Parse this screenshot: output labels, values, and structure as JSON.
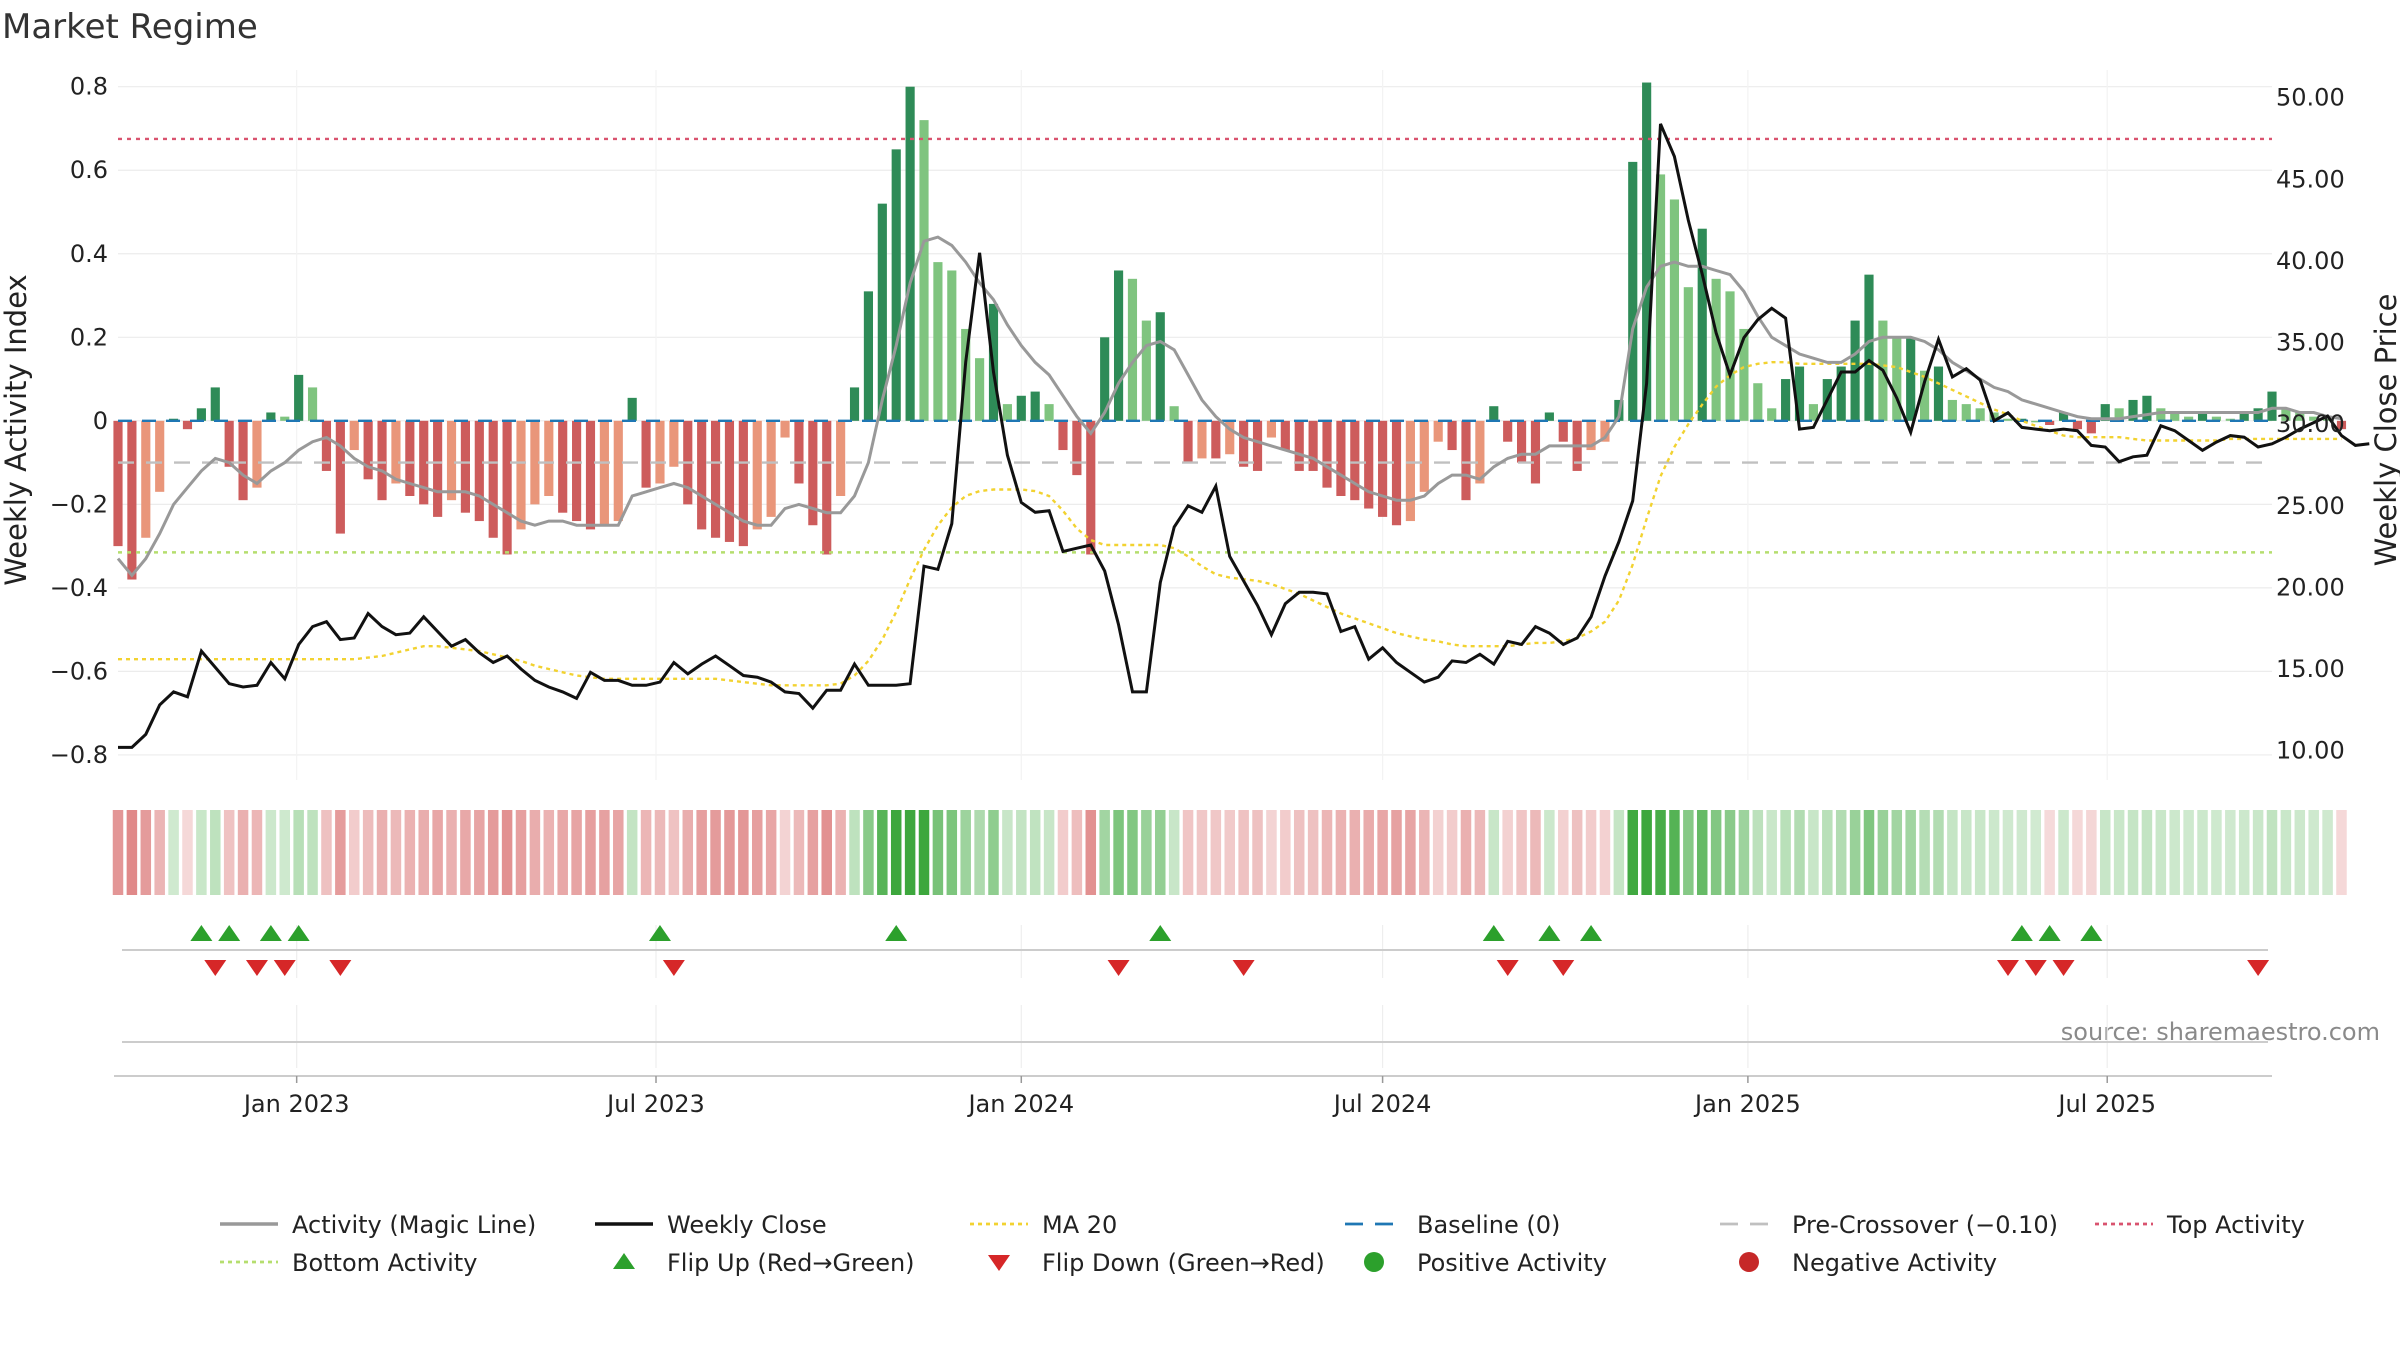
{
  "chart_data": {
    "type": "bar",
    "title": "Market Regime",
    "source_note": "source: sharemaestro.com",
    "y_left": {
      "label": "Weekly Activity Index",
      "ylim": [
        -0.86,
        0.84
      ],
      "ticks": [
        -0.8,
        -0.6,
        -0.4,
        -0.2,
        0,
        0.2,
        0.4,
        0.6,
        0.8
      ],
      "tick_labels": [
        "−0.8",
        "−0.6",
        "−0.4",
        "−0.2",
        "0",
        "0.2",
        "0.4",
        "0.6",
        "0.8"
      ]
    },
    "y_right": {
      "label": "Weekly Close Price",
      "ylim": [
        8.2,
        51.7
      ],
      "ticks": [
        10,
        15,
        20,
        25,
        30,
        35,
        40,
        45,
        50
      ],
      "tick_labels": [
        "10.00",
        "15.00",
        "20.00",
        "25.00",
        "30.00",
        "35.00",
        "40.00",
        "45.00",
        "50.00"
      ]
    },
    "x_axis": {
      "start_date": "2022-10-03",
      "end_date": "2025-09-22",
      "ticks": [
        {
          "date": "2023-01-01",
          "label": "Jan 2023"
        },
        {
          "date": "2023-07-01",
          "label": "Jul 2023"
        },
        {
          "date": "2024-01-01",
          "label": "Jan 2024"
        },
        {
          "date": "2024-07-01",
          "label": "Jul 2024"
        },
        {
          "date": "2025-01-01",
          "label": "Jan 2025"
        },
        {
          "date": "2025-07-01",
          "label": "Jul 2025"
        }
      ]
    },
    "reference_lines": {
      "baseline": 0,
      "pre_crossover": -0.1,
      "top_activity": 0.675,
      "bottom_activity": -0.315
    },
    "colors": {
      "dark_green": "#2e8b57",
      "light_green": "#7fc47f",
      "dark_red": "#cd5c5c",
      "light_red": "#e9967a",
      "magic_line": "#999999",
      "weekly_close": "#111111",
      "ma20": "#f2d230",
      "baseline": "#1f77b4",
      "pre_crossover": "#c0c0c0",
      "top_activity": "#d9536f",
      "bottom_activity": "#b5de6e",
      "flip_up": "#2ca02c",
      "flip_down": "#d62728",
      "positive": "#2ca02c",
      "negative": "#c62828"
    },
    "activity": [
      -0.3,
      -0.38,
      -0.28,
      -0.17,
      0.005,
      -0.02,
      0.03,
      0.08,
      -0.11,
      -0.19,
      -0.16,
      0.02,
      0.01,
      0.11,
      0.08,
      -0.12,
      -0.27,
      -0.07,
      -0.14,
      -0.19,
      -0.15,
      -0.18,
      -0.2,
      -0.23,
      -0.19,
      -0.22,
      -0.24,
      -0.28,
      -0.32,
      -0.26,
      -0.2,
      -0.18,
      -0.22,
      -0.24,
      -0.26,
      -0.25,
      -0.24,
      0.055,
      -0.16,
      -0.15,
      -0.11,
      -0.2,
      -0.26,
      -0.28,
      -0.29,
      -0.3,
      -0.26,
      -0.23,
      -0.04,
      -0.15,
      -0.25,
      -0.32,
      -0.18,
      0.08,
      0.31,
      0.52,
      0.65,
      0.8,
      0.72,
      0.38,
      0.36,
      0.22,
      0.15,
      0.28,
      0.04,
      0.06,
      0.07,
      0.04,
      -0.07,
      -0.13,
      -0.32,
      0.2,
      0.36,
      0.34,
      0.24,
      0.26,
      0.035,
      -0.1,
      -0.09,
      -0.09,
      -0.08,
      -0.11,
      -0.12,
      -0.04,
      -0.07,
      -0.12,
      -0.12,
      -0.16,
      -0.18,
      -0.19,
      -0.21,
      -0.23,
      -0.25,
      -0.24,
      -0.17,
      -0.05,
      -0.07,
      -0.19,
      -0.15,
      0.035,
      -0.05,
      -0.1,
      -0.15,
      0.02,
      -0.05,
      -0.12,
      -0.07,
      -0.05,
      0.05,
      0.62,
      0.81,
      0.59,
      0.53,
      0.32,
      0.46,
      0.34,
      0.31,
      0.22,
      0.09,
      0.03,
      0.1,
      0.13,
      0.04,
      0.1,
      0.13,
      0.24,
      0.35,
      0.24,
      0.2,
      0.2,
      0.12,
      0.13,
      0.05,
      0.04,
      0.03,
      0.02,
      0.005,
      0.005,
      0.0,
      -0.01,
      0.02,
      -0.02,
      -0.03,
      0.04,
      0.03,
      0.05,
      0.06,
      0.03,
      0.02,
      0.01,
      0.02,
      0.01,
      0.005,
      0.02,
      0.03,
      0.07,
      0.03,
      0.02,
      0.01,
      0.005,
      -0.02
    ],
    "magic_line": [
      -0.33,
      -0.37,
      -0.33,
      -0.27,
      -0.2,
      -0.16,
      -0.12,
      -0.09,
      -0.1,
      -0.13,
      -0.15,
      -0.12,
      -0.1,
      -0.07,
      -0.05,
      -0.04,
      -0.06,
      -0.09,
      -0.11,
      -0.12,
      -0.14,
      -0.15,
      -0.16,
      -0.17,
      -0.17,
      -0.17,
      -0.18,
      -0.2,
      -0.22,
      -0.24,
      -0.25,
      -0.24,
      -0.24,
      -0.25,
      -0.25,
      -0.25,
      -0.25,
      -0.18,
      -0.17,
      -0.16,
      -0.15,
      -0.16,
      -0.18,
      -0.2,
      -0.22,
      -0.24,
      -0.25,
      -0.25,
      -0.21,
      -0.2,
      -0.21,
      -0.22,
      -0.22,
      -0.18,
      -0.1,
      0.05,
      0.18,
      0.33,
      0.43,
      0.44,
      0.42,
      0.38,
      0.33,
      0.29,
      0.23,
      0.18,
      0.14,
      0.11,
      0.06,
      0.01,
      -0.03,
      0.02,
      0.09,
      0.14,
      0.18,
      0.19,
      0.17,
      0.11,
      0.05,
      0.01,
      -0.02,
      -0.04,
      -0.05,
      -0.06,
      -0.07,
      -0.08,
      -0.09,
      -0.11,
      -0.13,
      -0.15,
      -0.17,
      -0.18,
      -0.19,
      -0.19,
      -0.18,
      -0.15,
      -0.13,
      -0.13,
      -0.14,
      -0.11,
      -0.09,
      -0.08,
      -0.08,
      -0.06,
      -0.06,
      -0.06,
      -0.06,
      -0.04,
      0.01,
      0.22,
      0.32,
      0.37,
      0.38,
      0.37,
      0.37,
      0.36,
      0.35,
      0.31,
      0.25,
      0.2,
      0.18,
      0.16,
      0.15,
      0.14,
      0.14,
      0.16,
      0.19,
      0.2,
      0.2,
      0.2,
      0.19,
      0.17,
      0.14,
      0.12,
      0.1,
      0.08,
      0.07,
      0.05,
      0.04,
      0.03,
      0.02,
      0.01,
      0.005,
      0.005,
      0.005,
      0.01,
      0.015,
      0.02,
      0.02,
      0.02,
      0.02,
      0.02,
      0.02,
      0.02,
      0.02,
      0.03,
      0.03,
      0.02,
      0.02,
      0.01,
      0.005
    ],
    "weekly_close": [
      10.2,
      10.2,
      11,
      12.8,
      13.6,
      13.3,
      16.1,
      15.1,
      14.1,
      13.9,
      14,
      15.4,
      14.4,
      16.5,
      17.6,
      17.9,
      16.8,
      16.9,
      18.4,
      17.6,
      17.1,
      17.2,
      18.2,
      17.3,
      16.4,
      16.8,
      16,
      15.4,
      15.8,
      15,
      14.3,
      13.9,
      13.6,
      13.2,
      14.8,
      14.3,
      14.3,
      14,
      14,
      14.2,
      15.4,
      14.7,
      15.3,
      15.8,
      15.2,
      14.6,
      14.5,
      14.2,
      13.6,
      13.5,
      12.6,
      13.7,
      13.7,
      15.3,
      14,
      14,
      14,
      14.1,
      21.3,
      21.1,
      23.9,
      33.8,
      40.5,
      33.2,
      28.1,
      25.2,
      24.6,
      24.7,
      22.2,
      22.4,
      22.6,
      21,
      17.7,
      13.6,
      13.6,
      20.3,
      23.7,
      25,
      24.6,
      26.2,
      21.9,
      20.4,
      18.9,
      17.1,
      19,
      19.7,
      19.7,
      19.6,
      17.3,
      17.6,
      15.6,
      16.3,
      15.4,
      14.8,
      14.2,
      14.5,
      15.5,
      15.4,
      15.9,
      15.3,
      16.7,
      16.5,
      17.6,
      17.2,
      16.5,
      16.9,
      18.2,
      20.7,
      22.8,
      25.3,
      32.5,
      48.4,
      46.4,
      42.5,
      39.2,
      35.6,
      33,
      35.3,
      36.4,
      37.1,
      36.5,
      29.7,
      29.8,
      31.5,
      33.2,
      33.2,
      33.9,
      33.3,
      31.6,
      29.5,
      32.6,
      35.2,
      32.9,
      33.4,
      32.7,
      30.2,
      30.7,
      29.8,
      29.7,
      29.6,
      29.7,
      29.6,
      28.7,
      28.6,
      27.7,
      28,
      28.1,
      29.9,
      29.6,
      29,
      28.4,
      28.9,
      29.3,
      29.2,
      28.6,
      28.8,
      29.2,
      29.7,
      30.1,
      30.5,
      29.3,
      28.7,
      28.8
    ],
    "ma20": [
      15.6,
      15.6,
      15.6,
      15.6,
      15.6,
      15.6,
      15.6,
      15.6,
      15.6,
      15.6,
      15.6,
      15.6,
      15.6,
      15.6,
      15.6,
      15.6,
      15.6,
      15.6,
      15.7,
      15.8,
      16,
      16.2,
      16.4,
      16.4,
      16.3,
      16.2,
      16.1,
      15.9,
      15.7,
      15.5,
      15.2,
      15,
      14.8,
      14.6,
      14.5,
      14.4,
      14.4,
      14.4,
      14.4,
      14.4,
      14.4,
      14.4,
      14.4,
      14.4,
      14.3,
      14.2,
      14.1,
      14,
      14,
      14,
      14,
      14,
      14.1,
      14.6,
      15.5,
      16.8,
      18.5,
      20.5,
      22.3,
      23.8,
      24.9,
      25.6,
      25.9,
      26,
      26,
      26,
      25.9,
      25.6,
      24.7,
      23.6,
      22.9,
      22.6,
      22.6,
      22.6,
      22.6,
      22.6,
      22.4,
      21.9,
      21.3,
      20.8,
      20.6,
      20.5,
      20.4,
      20.2,
      19.9,
      19.6,
      19.2,
      18.8,
      18.4,
      18.1,
      17.8,
      17.5,
      17.2,
      17,
      16.8,
      16.7,
      16.5,
      16.4,
      16.4,
      16.4,
      16.4,
      16.5,
      16.6,
      16.6,
      16.7,
      16.9,
      17.3,
      17.9,
      19.2,
      21.4,
      24.2,
      26.8,
      28.6,
      30,
      31.2,
      32.3,
      33,
      33.5,
      33.7,
      33.8,
      33.8,
      33.7,
      33.7,
      33.7,
      33.7,
      33.7,
      33.7,
      33.6,
      33.5,
      33.2,
      32.9,
      32.5,
      32.1,
      31.7,
      31.3,
      30.9,
      30.6,
      30.2,
      29.9,
      29.6,
      29.3,
      29.2,
      29.2,
      29.2,
      29.2,
      29.1,
      29,
      29,
      29,
      29,
      29,
      29,
      29.1,
      29.1,
      29.1,
      29.1,
      29.1,
      29.1,
      29.1,
      29.1,
      29.1
    ],
    "flip_up": [
      "2022-11-14",
      "2022-11-28",
      "2022-12-19",
      "2023-01-02",
      "2023-07-03",
      "2023-10-30",
      "2024-03-11",
      "2024-08-26",
      "2024-09-23",
      "2024-10-14",
      "2025-05-19",
      "2025-06-02",
      "2025-06-23"
    ],
    "flip_down": [
      "2022-11-21",
      "2022-12-12",
      "2022-12-26",
      "2023-01-23",
      "2023-07-10",
      "2024-02-19",
      "2024-04-22",
      "2024-09-02",
      "2024-09-30",
      "2025-05-12",
      "2025-05-26",
      "2025-06-09",
      "2025-09-15"
    ],
    "legend": [
      {
        "key": "magic",
        "label": "Activity (Magic Line)"
      },
      {
        "key": "close",
        "label": "Weekly Close"
      },
      {
        "key": "ma20",
        "label": "MA 20"
      },
      {
        "key": "baseline",
        "label": "Baseline (0)"
      },
      {
        "key": "precross",
        "label": "Pre-Crossover (−0.10)"
      },
      {
        "key": "top",
        "label": "Top Activity"
      },
      {
        "key": "bottom",
        "label": "Bottom Activity"
      },
      {
        "key": "flipup",
        "label": "Flip Up (Red→Green)"
      },
      {
        "key": "flipdown",
        "label": "Flip Down (Green→Red)"
      },
      {
        "key": "positive",
        "label": "Positive Activity"
      },
      {
        "key": "negative",
        "label": "Negative Activity"
      }
    ]
  }
}
